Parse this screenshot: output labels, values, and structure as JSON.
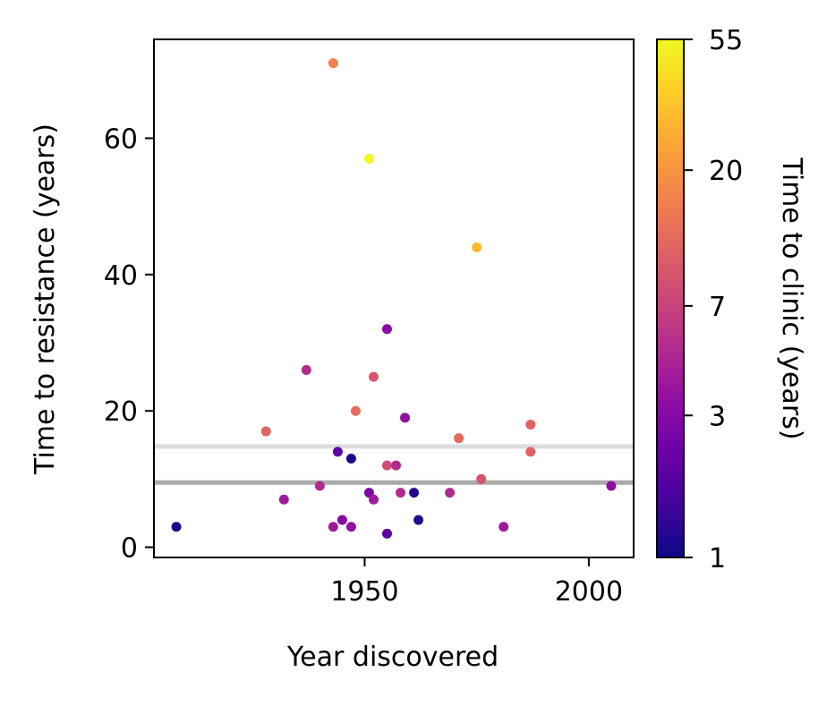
{
  "chart_data": {
    "type": "scatter",
    "title": "",
    "xlabel": "Year discovered",
    "ylabel": "Time to resistance (years)",
    "xlim": [
      1903,
      2010
    ],
    "ylim": [
      -1.5,
      74.5
    ],
    "x_ticks": [
      1950,
      2000
    ],
    "y_ticks": [
      0,
      20,
      40,
      60
    ],
    "grid": false,
    "colorbar": {
      "label": "Time to clinic (years)",
      "colormap": "plasma",
      "scale": "log",
      "range": [
        1,
        55
      ],
      "ticks": [
        1,
        3,
        7,
        20,
        55
      ]
    },
    "reference_lines": [
      {
        "y": 14.8,
        "color": "#dddddd"
      },
      {
        "y": 9.5,
        "color": "#aaaaaa"
      }
    ],
    "points": [
      {
        "x": 1943,
        "y": 71,
        "c": 16
      },
      {
        "x": 1951,
        "y": 57,
        "c": 55
      },
      {
        "x": 1975,
        "y": 44,
        "c": 30
      },
      {
        "x": 1955,
        "y": 32,
        "c": 3.2
      },
      {
        "x": 1937,
        "y": 26,
        "c": 5
      },
      {
        "x": 1952,
        "y": 25,
        "c": 9
      },
      {
        "x": 1948,
        "y": 20,
        "c": 12
      },
      {
        "x": 1959,
        "y": 19,
        "c": 3.5
      },
      {
        "x": 1987,
        "y": 18,
        "c": 11
      },
      {
        "x": 1928,
        "y": 17,
        "c": 11
      },
      {
        "x": 1971,
        "y": 16,
        "c": 12
      },
      {
        "x": 1944,
        "y": 14,
        "c": 2
      },
      {
        "x": 1987,
        "y": 14,
        "c": 11
      },
      {
        "x": 1947,
        "y": 13,
        "c": 1.1
      },
      {
        "x": 1955,
        "y": 12,
        "c": 8
      },
      {
        "x": 1957,
        "y": 12,
        "c": 5
      },
      {
        "x": 1976,
        "y": 10,
        "c": 9
      },
      {
        "x": 1940,
        "y": 9,
        "c": 5
      },
      {
        "x": 2005,
        "y": 9,
        "c": 3.3
      },
      {
        "x": 1951,
        "y": 8,
        "c": 2.7
      },
      {
        "x": 1958,
        "y": 8,
        "c": 5
      },
      {
        "x": 1961,
        "y": 8,
        "c": 1.2
      },
      {
        "x": 1969,
        "y": 8,
        "c": 5
      },
      {
        "x": 1932,
        "y": 7,
        "c": 4
      },
      {
        "x": 1952,
        "y": 7,
        "c": 4
      },
      {
        "x": 1945,
        "y": 4,
        "c": 3
      },
      {
        "x": 1962,
        "y": 4,
        "c": 1.2
      },
      {
        "x": 1908,
        "y": 3,
        "c": 1.1
      },
      {
        "x": 1943,
        "y": 3,
        "c": 4
      },
      {
        "x": 1947,
        "y": 3,
        "c": 3.5
      },
      {
        "x": 1981,
        "y": 3,
        "c": 4
      },
      {
        "x": 1955,
        "y": 2,
        "c": 2
      }
    ]
  }
}
